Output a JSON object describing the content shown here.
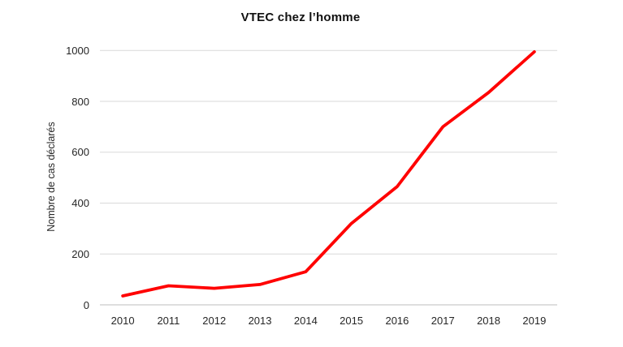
{
  "chart_data": {
    "type": "line",
    "title": "VTEC chez l’homme",
    "xlabel": "",
    "ylabel": "Nombre de cas déclarés",
    "categories": [
      "2010",
      "2011",
      "2012",
      "2013",
      "2014",
      "2015",
      "2016",
      "2017",
      "2018",
      "2019"
    ],
    "values": [
      35,
      75,
      65,
      80,
      130,
      320,
      465,
      700,
      835,
      995
    ],
    "ylim": [
      0,
      1000
    ],
    "yticks": [
      0,
      200,
      400,
      600,
      800,
      1000
    ],
    "grid": "horizontal-major",
    "legend": "none",
    "line_style": "solid, thick, round joins"
  },
  "colors": {
    "line": "#ff0000",
    "gridline": "#d9d9d9",
    "axis_line": "#c9c9c9",
    "tick_text": "#262626",
    "title_text": "#111111",
    "background": "#ffffff"
  }
}
